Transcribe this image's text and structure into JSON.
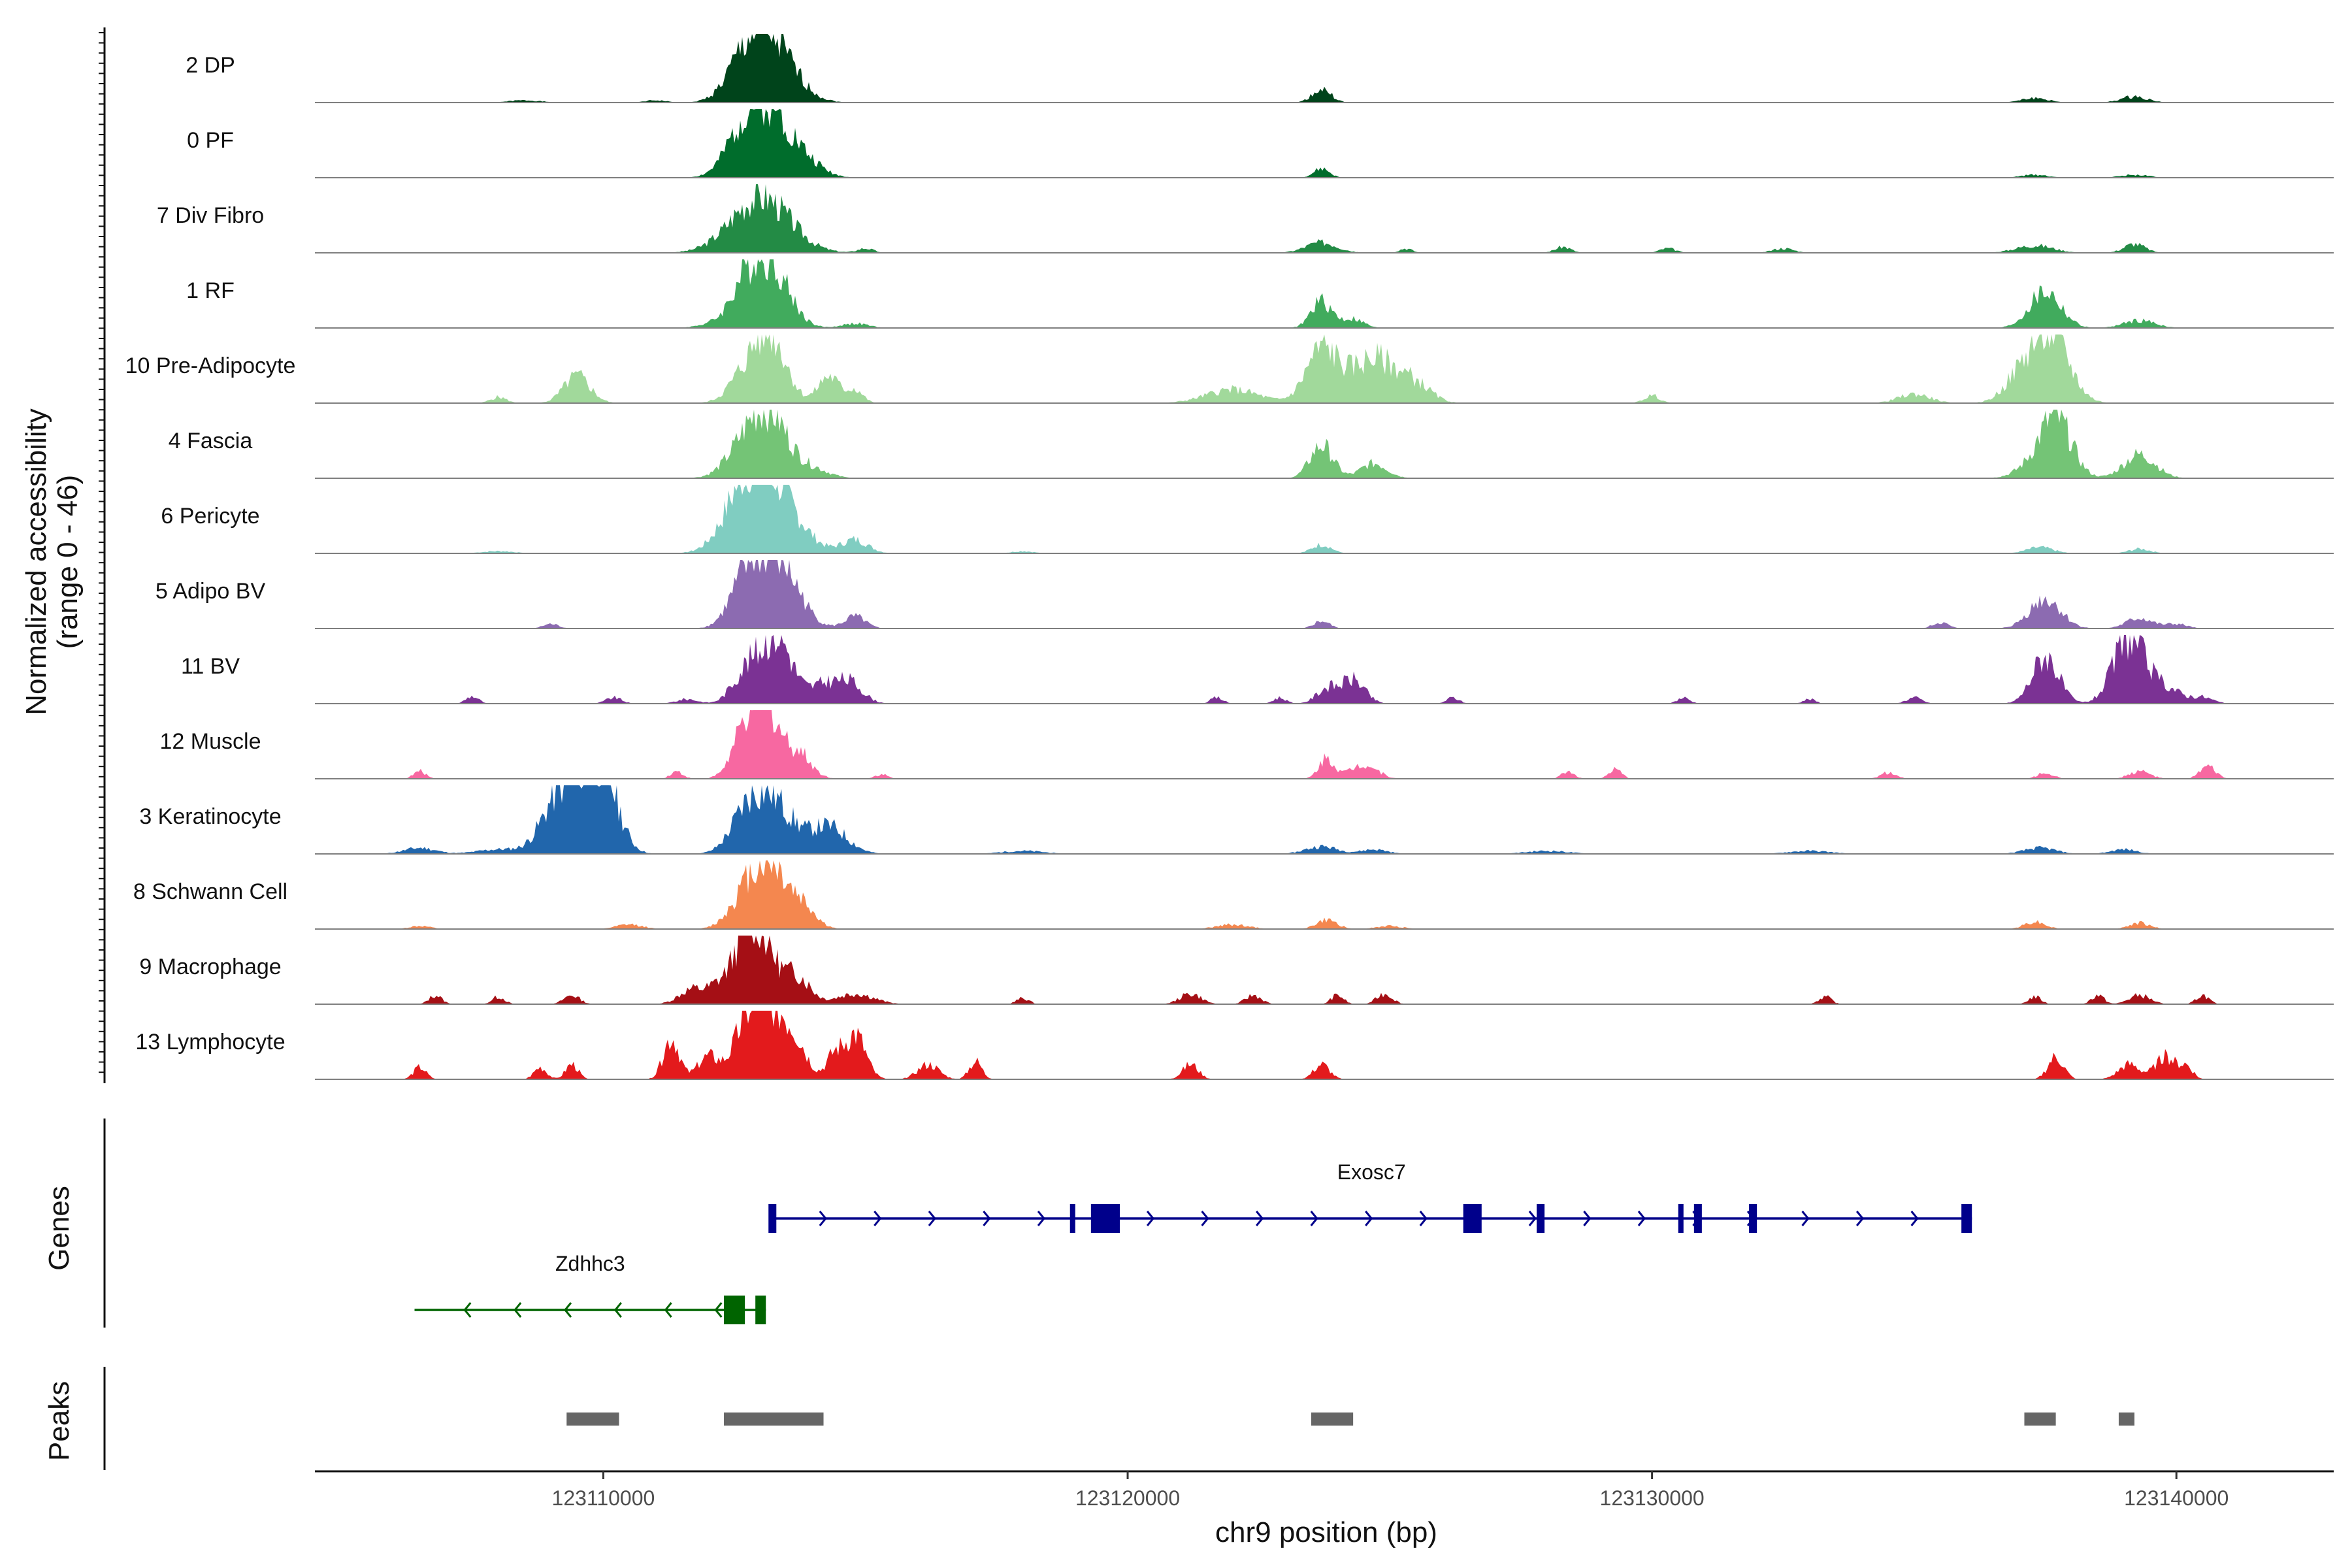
{
  "chart_data": {
    "type": "area",
    "title": "",
    "chromosome": "chr9",
    "xlabel": "chr9 position (bp)",
    "ylabel": "Normalized accessibility",
    "ylabel_range": "(range 0 - 46)",
    "xlim": [
      123104500,
      123143000
    ],
    "ylim": [
      0,
      46
    ],
    "x_ticks": [
      123110000,
      123120000,
      123130000,
      123140000
    ],
    "x_tick_labels": [
      "123110000",
      "123120000",
      "123130000",
      "123140000"
    ],
    "tracks": [
      {
        "name": "2 DP",
        "color": "#00441b",
        "peaks": [
          [
            123113200,
            38,
            450
          ],
          [
            123112700,
            20,
            350
          ],
          [
            123123700,
            9,
            180
          ],
          [
            123139200,
            4,
            250
          ],
          [
            123137300,
            3,
            250
          ],
          [
            123108500,
            1.5,
            300
          ],
          [
            123111000,
            1.5,
            200
          ]
        ]
      },
      {
        "name": "0 PF",
        "color": "#006d2c",
        "peaks": [
          [
            123113200,
            42,
            450
          ],
          [
            123112700,
            22,
            350
          ],
          [
            123123700,
            6,
            150
          ],
          [
            123114000,
            4,
            300
          ],
          [
            123139200,
            2,
            250
          ],
          [
            123137300,
            2,
            250
          ]
        ]
      },
      {
        "name": "7 Div Fibro",
        "color": "#238b45",
        "peaks": [
          [
            123113000,
            38,
            550
          ],
          [
            123123700,
            7,
            300
          ],
          [
            123137300,
            5,
            350
          ],
          [
            123139200,
            6,
            200
          ],
          [
            123128300,
            4,
            150
          ],
          [
            123130300,
            3,
            150
          ],
          [
            123125300,
            3,
            120
          ],
          [
            123132500,
            3,
            200
          ],
          [
            123115000,
            3,
            150
          ]
        ]
      },
      {
        "name": "1 RF",
        "color": "#41ab5d",
        "peaks": [
          [
            123113200,
            40,
            350
          ],
          [
            123112700,
            25,
            300
          ],
          [
            123137500,
            24,
            300
          ],
          [
            123123700,
            18,
            200
          ],
          [
            123124300,
            6,
            200
          ],
          [
            123139300,
            5,
            300
          ],
          [
            123114800,
            3,
            250
          ],
          [
            123112000,
            2,
            250
          ]
        ]
      },
      {
        "name": "10 Pre-Adipocyte",
        "color": "#a1d99b",
        "peaks": [
          [
            123113200,
            43,
            300
          ],
          [
            123112700,
            18,
            300
          ],
          [
            123137600,
            46,
            350
          ],
          [
            123137000,
            15,
            300
          ],
          [
            123123700,
            35,
            300
          ],
          [
            123124700,
            30,
            450
          ],
          [
            123125500,
            10,
            300
          ],
          [
            123109500,
            18,
            250
          ],
          [
            123114300,
            18,
            200
          ],
          [
            123114800,
            9,
            150
          ],
          [
            123122000,
            9,
            500
          ],
          [
            123135000,
            6,
            300
          ],
          [
            123130000,
            5,
            150
          ],
          [
            123108000,
            4,
            150
          ]
        ]
      },
      {
        "name": "4 Fascia",
        "color": "#74c476",
        "peaks": [
          [
            123113200,
            38,
            350
          ],
          [
            123112700,
            20,
            350
          ],
          [
            123137700,
            40,
            300
          ],
          [
            123139300,
            16,
            300
          ],
          [
            123123700,
            22,
            220
          ],
          [
            123124700,
            10,
            250
          ],
          [
            123114000,
            6,
            300
          ],
          [
            123137200,
            6,
            300
          ]
        ]
      },
      {
        "name": "6 Pericyte",
        "color": "#80cdc1",
        "peaks": [
          [
            123113200,
            42,
            500
          ],
          [
            123112700,
            30,
            400
          ],
          [
            123114800,
            9,
            250
          ],
          [
            123123700,
            6,
            180
          ],
          [
            123137400,
            4,
            250
          ],
          [
            123139300,
            3,
            200
          ],
          [
            123108000,
            1.5,
            300
          ],
          [
            123118000,
            1.5,
            200
          ]
        ]
      },
      {
        "name": "5 Adipo BV",
        "color": "#8c6bb1",
        "peaks": [
          [
            123113300,
            46,
            400
          ],
          [
            123112700,
            26,
            300
          ],
          [
            123137500,
            20,
            300
          ],
          [
            123114800,
            8,
            200
          ],
          [
            123139300,
            7,
            250
          ],
          [
            123123700,
            5,
            150
          ],
          [
            123135500,
            4,
            150
          ],
          [
            123140000,
            3,
            200
          ],
          [
            123109000,
            3,
            150
          ]
        ]
      },
      {
        "name": "11 BV",
        "color": "#7b3294",
        "peaks": [
          [
            123113300,
            46,
            300
          ],
          [
            123112700,
            20,
            250
          ],
          [
            123139100,
            44,
            300
          ],
          [
            123137500,
            32,
            250
          ],
          [
            123114700,
            14,
            250
          ],
          [
            123114200,
            12,
            250
          ],
          [
            123124300,
            16,
            220
          ],
          [
            123123800,
            10,
            200
          ],
          [
            123139800,
            10,
            300
          ],
          [
            123107500,
            5,
            120
          ],
          [
            123110200,
            4,
            150
          ],
          [
            123111600,
            3,
            200
          ],
          [
            123121700,
            4,
            120
          ],
          [
            123122900,
            4,
            120
          ],
          [
            123126200,
            4,
            120
          ],
          [
            123130600,
            4,
            120
          ],
          [
            123133000,
            3,
            120
          ],
          [
            123135000,
            4,
            150
          ],
          [
            123140500,
            4,
            200
          ]
        ]
      },
      {
        "name": "12 Muscle",
        "color": "#f768a1",
        "peaks": [
          [
            123113100,
            46,
            250
          ],
          [
            123112700,
            28,
            250
          ],
          [
            123113700,
            18,
            250
          ],
          [
            123123800,
            14,
            150
          ],
          [
            123124500,
            10,
            250
          ],
          [
            123106500,
            5,
            120
          ],
          [
            123111400,
            5,
            120
          ],
          [
            123115300,
            3,
            120
          ],
          [
            123128400,
            5,
            120
          ],
          [
            123129300,
            6,
            120
          ],
          [
            123134500,
            4,
            150
          ],
          [
            123137500,
            4,
            150
          ],
          [
            123139300,
            5,
            200
          ],
          [
            123140600,
            8,
            150
          ]
        ]
      },
      {
        "name": "3 Keratinocyte",
        "color": "#2166ac",
        "peaks": [
          [
            123109200,
            40,
            350
          ],
          [
            123110000,
            44,
            300
          ],
          [
            123109700,
            25,
            300
          ],
          [
            123113200,
            36,
            400
          ],
          [
            123112700,
            18,
            300
          ],
          [
            123114300,
            18,
            350
          ],
          [
            123106500,
            4,
            300
          ],
          [
            123108000,
            3,
            400
          ],
          [
            123123700,
            5,
            300
          ],
          [
            123124700,
            3,
            250
          ],
          [
            123137400,
            4,
            300
          ],
          [
            123139000,
            3,
            250
          ],
          [
            123118000,
            2,
            400
          ],
          [
            123128000,
            2,
            400
          ],
          [
            123133000,
            2,
            400
          ]
        ]
      },
      {
        "name": "8 Schwann Cell",
        "color": "#f4874f",
        "peaks": [
          [
            123113200,
            40,
            300
          ],
          [
            123112700,
            22,
            300
          ],
          [
            123113800,
            15,
            250
          ],
          [
            123123800,
            6,
            200
          ],
          [
            123122000,
            3,
            300
          ],
          [
            123137300,
            5,
            200
          ],
          [
            123139300,
            4,
            200
          ],
          [
            123110500,
            3,
            250
          ],
          [
            123106500,
            2,
            200
          ],
          [
            123125000,
            2,
            250
          ]
        ]
      },
      {
        "name": "9 Macrophage",
        "color": "#a50f15",
        "peaks": [
          [
            123113000,
            38,
            300
          ],
          [
            123112700,
            30,
            250
          ],
          [
            123113700,
            18,
            250
          ],
          [
            123111700,
            10,
            250
          ],
          [
            123112200,
            10,
            200
          ],
          [
            123114800,
            7,
            350
          ],
          [
            123106800,
            6,
            120
          ],
          [
            123108000,
            5,
            120
          ],
          [
            123109400,
            6,
            150
          ],
          [
            123121200,
            7,
            200
          ],
          [
            123122400,
            6,
            150
          ],
          [
            123124000,
            6,
            120
          ],
          [
            123124900,
            7,
            150
          ],
          [
            123118000,
            4,
            120
          ],
          [
            123133300,
            5,
            120
          ],
          [
            123137300,
            5,
            120
          ],
          [
            123138500,
            6,
            120
          ],
          [
            123139300,
            6,
            200
          ],
          [
            123140500,
            6,
            120
          ]
        ]
      },
      {
        "name": "13 Lymphocyte",
        "color": "#e31a1c",
        "peaks": [
          [
            123113100,
            46,
            250
          ],
          [
            123112700,
            30,
            250
          ],
          [
            123113600,
            30,
            250
          ],
          [
            123111300,
            28,
            150
          ],
          [
            123112000,
            15,
            200
          ],
          [
            123114800,
            30,
            200
          ],
          [
            123114400,
            15,
            150
          ],
          [
            123106500,
            8,
            120
          ],
          [
            123108800,
            8,
            120
          ],
          [
            123109400,
            10,
            120
          ],
          [
            123116200,
            10,
            200
          ],
          [
            123117100,
            12,
            120
          ],
          [
            123121200,
            10,
            150
          ],
          [
            123123700,
            10,
            150
          ],
          [
            123137700,
            15,
            150
          ],
          [
            123139100,
            10,
            200
          ],
          [
            123139800,
            15,
            200
          ],
          [
            123140200,
            8,
            120
          ]
        ]
      }
    ],
    "genes": [
      {
        "name": "Exosc7",
        "strand": "+",
        "color": "#00008b",
        "start": 123113200,
        "end": 123136100,
        "exons": [
          [
            123113150,
            123113300
          ],
          [
            123118900,
            123119000
          ],
          [
            123119300,
            123119850
          ],
          [
            123126400,
            123126750
          ],
          [
            123127800,
            123127950
          ],
          [
            123130500,
            123130600
          ],
          [
            123130800,
            123130950
          ],
          [
            123131850,
            123132000
          ],
          [
            123135900,
            123136100
          ]
        ]
      },
      {
        "name": "Zdhhc3",
        "strand": "-",
        "color": "#006400",
        "start": 123106400,
        "end": 123113100,
        "exons": [
          [
            123112300,
            123112700
          ],
          [
            123112900,
            123113100
          ]
        ]
      }
    ],
    "gene_tracks_title": "Genes",
    "peak_track": {
      "name": "Peaks",
      "color": "#666666",
      "regions": [
        [
          123109300,
          123110300
        ],
        [
          123112300,
          123114200
        ],
        [
          123123500,
          123124300
        ],
        [
          123137100,
          123137700
        ],
        [
          123138900,
          123139200
        ]
      ]
    }
  }
}
